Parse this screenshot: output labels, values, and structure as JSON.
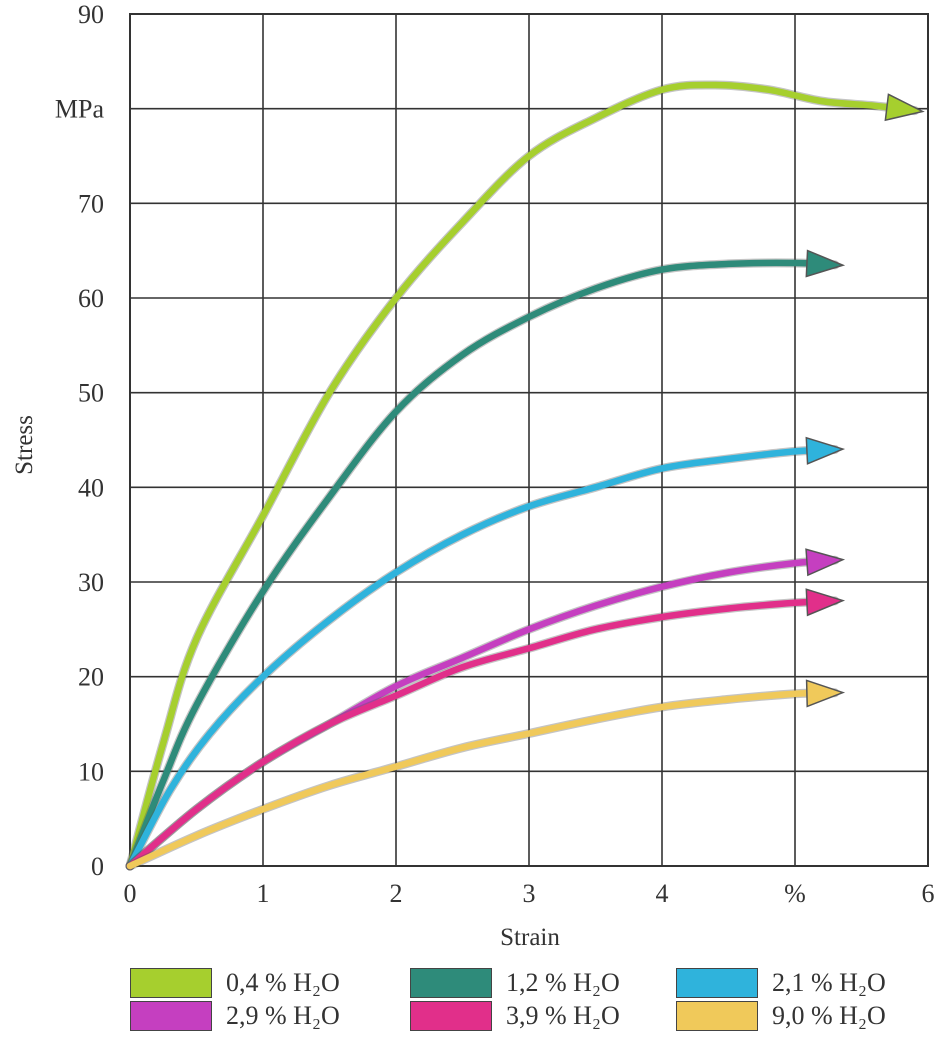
{
  "chart_data": {
    "type": "line",
    "xlabel": "Strain",
    "ylabel": "Stress",
    "xlim": [
      0,
      6
    ],
    "ylim": [
      0,
      90
    ],
    "x_ticks": [
      "0",
      "1",
      "2",
      "3",
      "4",
      "%",
      "6"
    ],
    "y_ticks": [
      "0",
      "10",
      "20",
      "30",
      "40",
      "50",
      "60",
      "70",
      "MPa",
      "90"
    ],
    "grid": true,
    "legend_position": "bottom",
    "series": [
      {
        "name": "0,4 % H₂O",
        "color": "#a6cf2e",
        "x": [
          0,
          0.25,
          0.5,
          1,
          1.5,
          2,
          2.5,
          3,
          3.5,
          4,
          4.4,
          4.8,
          5.2,
          5.6,
          5.9
        ],
        "y": [
          0,
          13,
          24,
          37,
          50,
          60,
          68,
          75,
          79,
          82,
          82.5,
          82,
          80.8,
          80.3,
          79.8
        ]
      },
      {
        "name": "1,2 % H₂O",
        "color": "#2e8b7a",
        "x": [
          0,
          0.25,
          0.5,
          1,
          1.5,
          2,
          2.5,
          3,
          3.5,
          4,
          4.5,
          5,
          5.3
        ],
        "y": [
          0,
          9,
          17,
          29,
          39,
          48,
          54,
          58,
          61,
          63,
          63.6,
          63.7,
          63.5
        ]
      },
      {
        "name": "2,1 % H₂O",
        "color": "#2fb3dc",
        "x": [
          0,
          0.3,
          0.6,
          1,
          1.5,
          2,
          2.5,
          3,
          3.5,
          4,
          4.5,
          5,
          5.3
        ],
        "y": [
          0,
          8,
          14,
          20,
          26,
          31,
          35,
          38,
          40,
          42,
          43,
          43.8,
          44
        ]
      },
      {
        "name": "2,9 % H₂O",
        "color": "#c53fc0",
        "x": [
          0,
          0.5,
          1,
          1.5,
          2,
          2.5,
          3,
          3.5,
          4,
          4.5,
          5,
          5.3
        ],
        "y": [
          0,
          6,
          11,
          15,
          19,
          22,
          25,
          27.5,
          29.5,
          31,
          32,
          32.3
        ]
      },
      {
        "name": "3,9 % H₂O",
        "color": "#e12f8a",
        "x": [
          0,
          0.5,
          1,
          1.5,
          2,
          2.5,
          3,
          3.5,
          4,
          4.5,
          5,
          5.3
        ],
        "y": [
          0,
          6,
          11,
          15,
          18,
          21,
          23,
          25,
          26.3,
          27.2,
          27.8,
          28
        ]
      },
      {
        "name": "9,0 % H₂O",
        "color": "#f0c95a",
        "x": [
          0,
          0.5,
          1,
          1.5,
          2,
          2.5,
          3,
          3.5,
          4,
          4.5,
          5,
          5.3
        ],
        "y": [
          0,
          3.2,
          6,
          8.5,
          10.5,
          12.5,
          14,
          15.5,
          16.8,
          17.6,
          18.2,
          18.3
        ]
      }
    ]
  }
}
